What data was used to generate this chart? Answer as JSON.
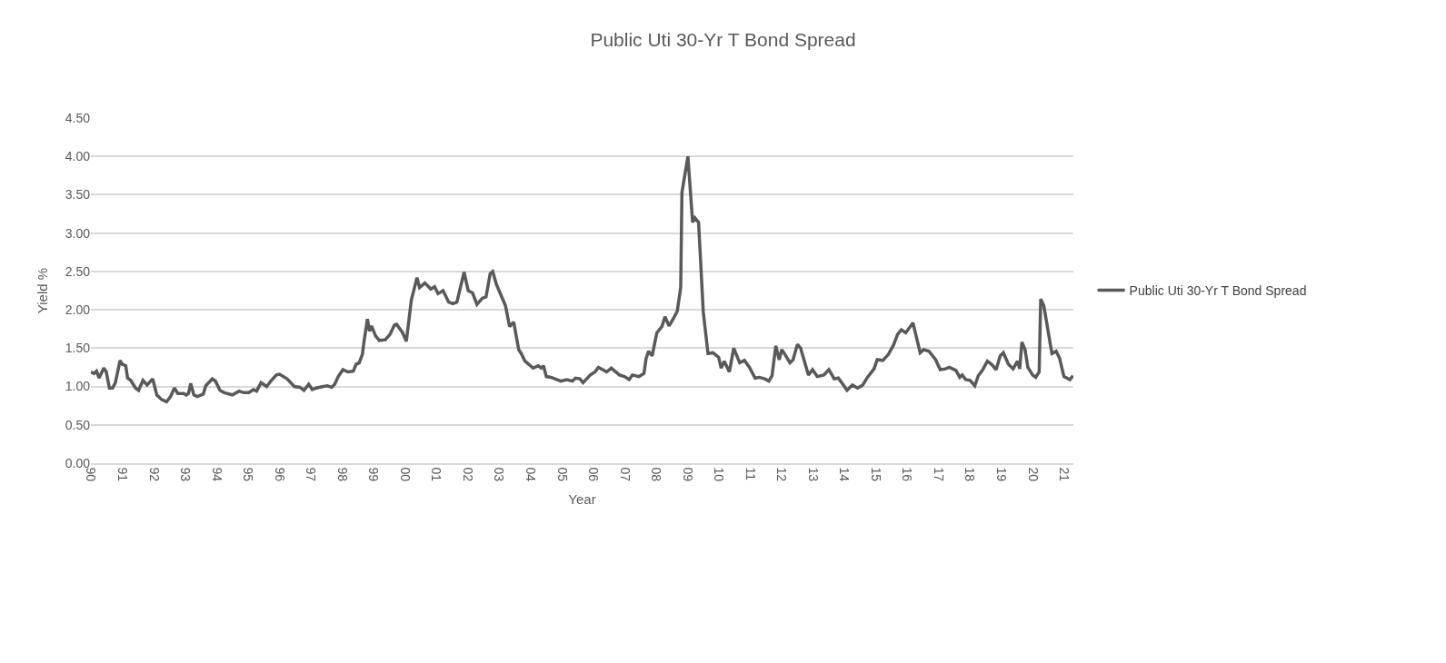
{
  "chart_data": {
    "type": "line",
    "title": "Public Uti 30-Yr T Bond Spread",
    "xlabel": "Year",
    "ylabel": "Yield %",
    "xlim": [
      1990,
      2021.3
    ],
    "xticks": [
      {
        "value": 1990,
        "label": "90"
      },
      {
        "value": 1991,
        "label": "91"
      },
      {
        "value": 1992,
        "label": "92"
      },
      {
        "value": 1993,
        "label": "93"
      },
      {
        "value": 1994,
        "label": "94"
      },
      {
        "value": 1995,
        "label": "95"
      },
      {
        "value": 1996,
        "label": "96"
      },
      {
        "value": 1997,
        "label": "97"
      },
      {
        "value": 1998,
        "label": "98"
      },
      {
        "value": 1999,
        "label": "99"
      },
      {
        "value": 2000,
        "label": "00"
      },
      {
        "value": 2001,
        "label": "01"
      },
      {
        "value": 2002,
        "label": "02"
      },
      {
        "value": 2003,
        "label": "03"
      },
      {
        "value": 2004,
        "label": "04"
      },
      {
        "value": 2005,
        "label": "05"
      },
      {
        "value": 2006,
        "label": "06"
      },
      {
        "value": 2007,
        "label": "07"
      },
      {
        "value": 2008,
        "label": "08"
      },
      {
        "value": 2009,
        "label": "09"
      },
      {
        "value": 2010,
        "label": "10"
      },
      {
        "value": 2011,
        "label": "11"
      },
      {
        "value": 2012,
        "label": "12"
      },
      {
        "value": 2013,
        "label": "13"
      },
      {
        "value": 2014,
        "label": "14"
      },
      {
        "value": 2015,
        "label": "15"
      },
      {
        "value": 2016,
        "label": "16"
      },
      {
        "value": 2017,
        "label": "17"
      },
      {
        "value": 2018,
        "label": "18"
      },
      {
        "value": 2019,
        "label": "19"
      },
      {
        "value": 2020,
        "label": "20"
      },
      {
        "value": 2021,
        "label": "21"
      }
    ],
    "ylim": [
      0,
      4.5
    ],
    "yticks": [
      {
        "value": 0,
        "label": "0.00"
      },
      {
        "value": 0.5,
        "label": "0.50"
      },
      {
        "value": 1,
        "label": "1.00"
      },
      {
        "value": 1.5,
        "label": "1.50"
      },
      {
        "value": 2,
        "label": "2.00"
      },
      {
        "value": 2.5,
        "label": "2.50"
      },
      {
        "value": 3,
        "label": "3.00"
      },
      {
        "value": 3.5,
        "label": "3.50"
      },
      {
        "value": 4,
        "label": "4.00"
      },
      {
        "value": 4.5,
        "label": "4.50"
      }
    ],
    "grid": "y",
    "legend": "right",
    "marker": "none",
    "line_style": "solid",
    "series": [
      {
        "name": "Public Uti 30-Yr T Bond Spread",
        "color": "#595959",
        "x": [
          1990.0,
          1990.1,
          1990.18,
          1990.26,
          1990.41,
          1990.49,
          1990.59,
          1990.69,
          1990.78,
          1990.93,
          1991.0,
          1991.11,
          1991.17,
          1991.27,
          1991.42,
          1991.52,
          1991.66,
          1991.79,
          1991.97,
          1992.1,
          1992.25,
          1992.41,
          1992.54,
          1992.66,
          1992.77,
          1992.95,
          1993.04,
          1993.11,
          1993.18,
          1993.28,
          1993.39,
          1993.58,
          1993.66,
          1993.87,
          1993.97,
          1994.11,
          1994.25,
          1994.51,
          1994.72,
          1994.87,
          1995.03,
          1995.18,
          1995.28,
          1995.42,
          1995.6,
          1995.75,
          1995.91,
          1996.01,
          1996.25,
          1996.48,
          1996.66,
          1996.79,
          1996.94,
          1997.05,
          1997.18,
          1997.41,
          1997.53,
          1997.67,
          1997.77,
          1997.88,
          1998.03,
          1998.19,
          1998.36,
          1998.45,
          1998.55,
          1998.65,
          1998.7,
          1998.81,
          1998.88,
          1998.94,
          1999.07,
          1999.19,
          1999.38,
          1999.53,
          1999.67,
          1999.74,
          1999.92,
          2000.05,
          2000.21,
          2000.31,
          2000.39,
          2000.47,
          2000.64,
          2000.83,
          2000.95,
          2001.06,
          2001.22,
          2001.4,
          2001.53,
          2001.66,
          2001.76,
          2001.89,
          2002.02,
          2002.16,
          2002.3,
          2002.47,
          2002.59,
          2002.72,
          2002.8,
          2002.92,
          2003.21,
          2003.34,
          2003.47,
          2003.63,
          2003.71,
          2003.83,
          2004.09,
          2004.25,
          2004.35,
          2004.42,
          2004.51,
          2004.66,
          2004.97,
          2005.16,
          2005.34,
          2005.44,
          2005.58,
          2005.68,
          2005.91,
          2006.06,
          2006.17,
          2006.43,
          2006.58,
          2006.84,
          2007.0,
          2007.15,
          2007.25,
          2007.46,
          2007.62,
          2007.69,
          2007.77,
          2007.88,
          2008.03,
          2008.19,
          2008.29,
          2008.42,
          2008.55,
          2008.68,
          2008.79,
          2008.83,
          2009.02,
          2009.17,
          2009.24,
          2009.36,
          2009.51,
          2009.66,
          2009.82,
          2010.0,
          2010.08,
          2010.18,
          2010.34,
          2010.48,
          2010.67,
          2010.82,
          2010.98,
          2011.16,
          2011.29,
          2011.47,
          2011.6,
          2011.7,
          2011.82,
          2011.93,
          2012.01,
          2012.11,
          2012.27,
          2012.37,
          2012.51,
          2012.61,
          2012.86,
          2012.99,
          2013.14,
          2013.35,
          2013.51,
          2013.68,
          2013.81,
          2013.92,
          2014.09,
          2014.26,
          2014.43,
          2014.59,
          2014.74,
          2014.95,
          2015.05,
          2015.23,
          2015.41,
          2015.57,
          2015.7,
          2015.82,
          2015.96,
          2016.19,
          2016.32,
          2016.42,
          2016.53,
          2016.7,
          2016.91,
          2017.06,
          2017.22,
          2017.35,
          2017.56,
          2017.68,
          2017.76,
          2017.87,
          2018.01,
          2018.16,
          2018.27,
          2018.4,
          2018.56,
          2018.69,
          2018.84,
          2018.97,
          2019.07,
          2019.23,
          2019.38,
          2019.52,
          2019.59,
          2019.66,
          2019.76,
          2019.85,
          2020.0,
          2020.1,
          2020.21,
          2020.26,
          2020.36,
          2020.57,
          2020.62,
          2020.75,
          2020.86,
          2021.0,
          2021.19,
          2021.29
        ],
        "values": [
          1.19,
          1.17,
          1.2,
          1.11,
          1.24,
          1.19,
          0.98,
          0.98,
          1.05,
          1.34,
          1.29,
          1.27,
          1.11,
          1.08,
          0.98,
          0.95,
          1.08,
          1.02,
          1.1,
          0.89,
          0.83,
          0.8,
          0.87,
          0.98,
          0.91,
          0.91,
          0.89,
          0.91,
          1.04,
          0.89,
          0.87,
          0.9,
          1.01,
          1.1,
          1.07,
          0.95,
          0.92,
          0.89,
          0.94,
          0.92,
          0.92,
          0.96,
          0.94,
          1.05,
          1.0,
          1.08,
          1.15,
          1.16,
          1.1,
          1.0,
          0.99,
          0.95,
          1.03,
          0.96,
          0.98,
          1.0,
          1.01,
          0.99,
          1.03,
          1.13,
          1.22,
          1.19,
          1.2,
          1.29,
          1.31,
          1.42,
          1.58,
          1.88,
          1.72,
          1.79,
          1.66,
          1.6,
          1.61,
          1.68,
          1.8,
          1.81,
          1.71,
          1.59,
          2.13,
          2.29,
          2.42,
          2.29,
          2.35,
          2.27,
          2.3,
          2.21,
          2.25,
          2.1,
          2.08,
          2.1,
          2.27,
          2.49,
          2.25,
          2.22,
          2.07,
          2.15,
          2.17,
          2.47,
          2.5,
          2.33,
          2.05,
          1.78,
          1.84,
          1.48,
          1.43,
          1.33,
          1.24,
          1.27,
          1.24,
          1.27,
          1.13,
          1.12,
          1.07,
          1.09,
          1.07,
          1.11,
          1.1,
          1.05,
          1.15,
          1.19,
          1.25,
          1.19,
          1.24,
          1.15,
          1.13,
          1.09,
          1.15,
          1.13,
          1.17,
          1.37,
          1.46,
          1.4,
          1.7,
          1.78,
          1.91,
          1.79,
          1.88,
          1.98,
          2.29,
          3.53,
          4.0,
          3.14,
          3.2,
          3.14,
          1.97,
          1.43,
          1.44,
          1.38,
          1.24,
          1.33,
          1.19,
          1.5,
          1.31,
          1.34,
          1.25,
          1.11,
          1.12,
          1.1,
          1.07,
          1.14,
          1.53,
          1.35,
          1.48,
          1.42,
          1.31,
          1.35,
          1.55,
          1.5,
          1.15,
          1.22,
          1.13,
          1.15,
          1.22,
          1.1,
          1.11,
          1.05,
          0.95,
          1.02,
          0.98,
          1.02,
          1.12,
          1.23,
          1.35,
          1.34,
          1.42,
          1.54,
          1.68,
          1.74,
          1.7,
          1.83,
          1.61,
          1.44,
          1.48,
          1.46,
          1.35,
          1.22,
          1.23,
          1.25,
          1.21,
          1.12,
          1.15,
          1.09,
          1.08,
          1.01,
          1.14,
          1.21,
          1.33,
          1.29,
          1.22,
          1.4,
          1.44,
          1.29,
          1.23,
          1.33,
          1.23,
          1.58,
          1.48,
          1.25,
          1.15,
          1.12,
          1.19,
          2.14,
          2.05,
          1.54,
          1.43,
          1.46,
          1.37,
          1.13,
          1.09,
          1.14
        ]
      }
    ]
  }
}
